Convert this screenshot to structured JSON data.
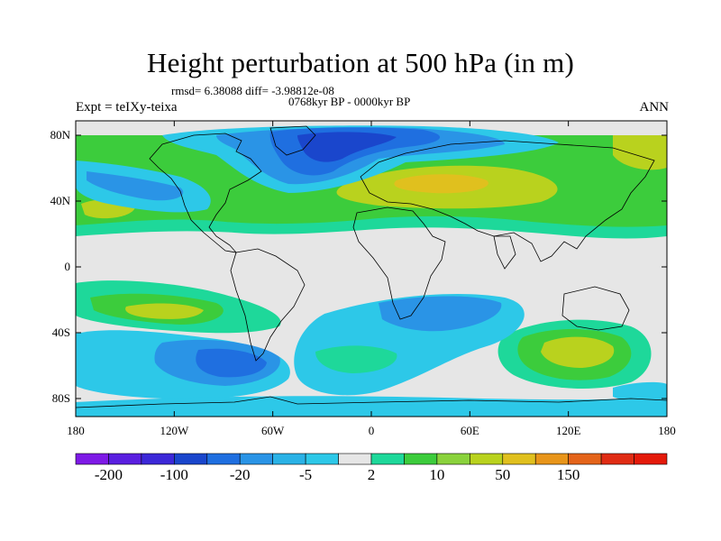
{
  "title": "Height perturbation at 500 hPa (in m)",
  "stats_line": "rmsd= 6.38088 diff= -3.98812e-08",
  "period": "0768kyr BP - 0000kyr BP",
  "experiment": "Expt = teIXy-teixa",
  "season": "ANN",
  "axes": {
    "lat_labels": [
      "80N",
      "40N",
      "0",
      "40S",
      "80S"
    ],
    "lon_labels": [
      "180",
      "120W",
      "60W",
      "0",
      "60E",
      "120E",
      "180"
    ]
  },
  "colorbar": {
    "colors": [
      "#7e1ae6",
      "#5a1fe0",
      "#3c28d8",
      "#1a46cc",
      "#1f6fe0",
      "#2a94e6",
      "#2ab2e6",
      "#2dc8e8",
      "#e6e6e6",
      "#1ed89a",
      "#3ccc3c",
      "#8ad23c",
      "#b9d21e",
      "#e0c01e",
      "#e8951a",
      "#e4641a",
      "#e02c14",
      "#e41a0a"
    ],
    "tick_labels": [
      "-200",
      "-100",
      "-20",
      "-5",
      "2",
      "10",
      "50",
      "150"
    ]
  },
  "field_colors": {
    "neutral": "#e6e6e6",
    "light_blue": "#2dc8e8",
    "mid_blue": "#2a94e6",
    "blue": "#1f6fe0",
    "dark_blue": "#1a46cc",
    "teal": "#1ed89a",
    "green": "#3ccc3c",
    "lime": "#b9d21e",
    "yellow": "#e0c01e",
    "orange": "#e8951a",
    "coast": "#000000"
  }
}
